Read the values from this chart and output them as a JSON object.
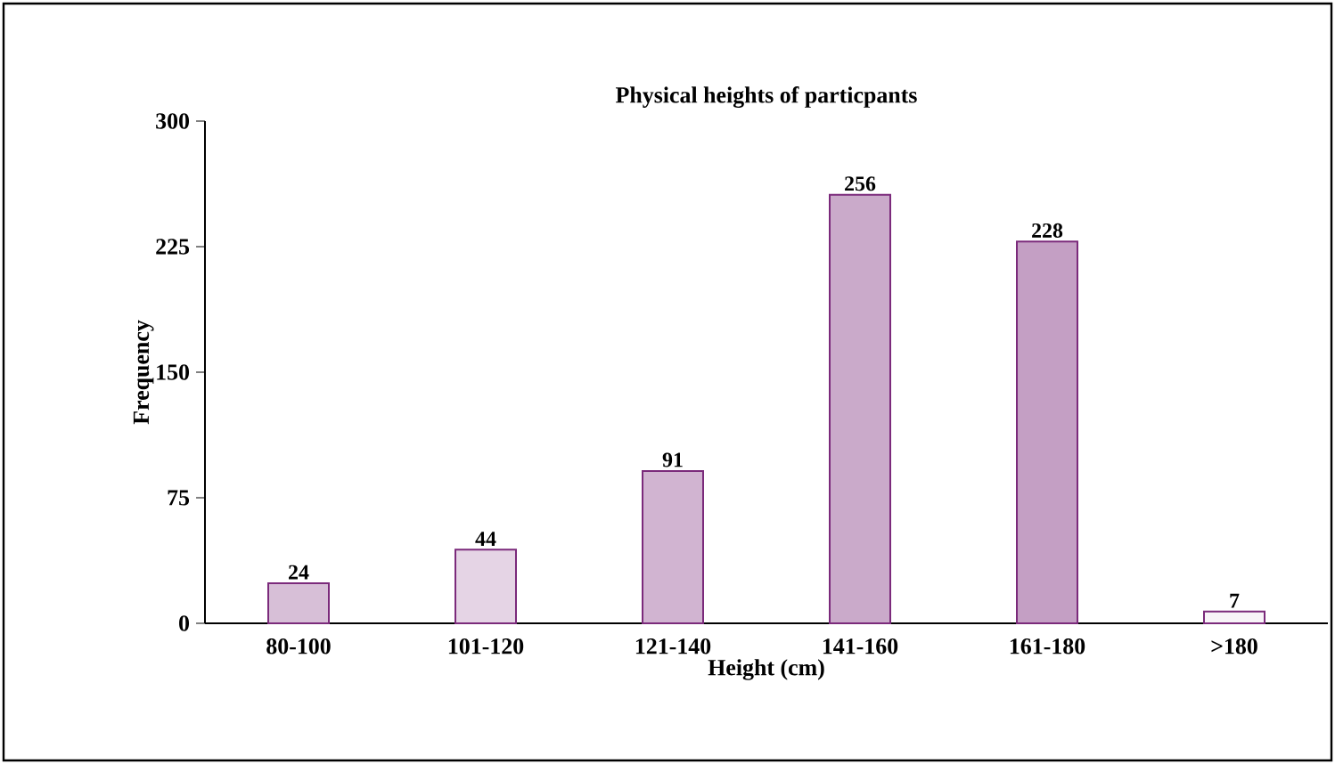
{
  "chart_data": {
    "type": "bar",
    "title": "Physical heights of particpants",
    "xlabel": "Height (cm)",
    "ylabel": "Frequency",
    "categories": [
      "80-100",
      "101-120",
      "121-140",
      "141-160",
      "161-180",
      ">180"
    ],
    "values": [
      24,
      44,
      91,
      256,
      228,
      7
    ],
    "color": "#7b2a7b",
    "ylim": [
      0,
      300
    ],
    "yticks": [
      0,
      75,
      150,
      225,
      300
    ],
    "data_labels": true
  }
}
